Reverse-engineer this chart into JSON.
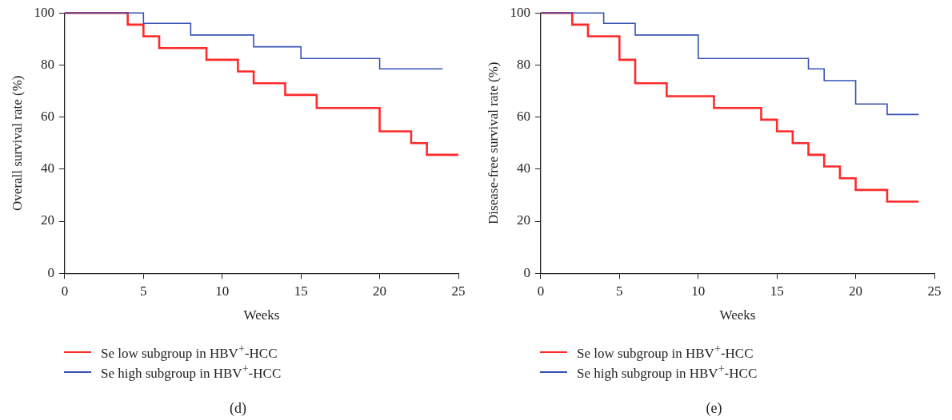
{
  "chart_data": [
    {
      "type": "step",
      "xlabel": "Weeks",
      "ylabel": "Overall survival rate (%)",
      "xlim": [
        0,
        25
      ],
      "xticks": [
        0,
        5,
        10,
        15,
        20,
        25
      ],
      "ylim": [
        0,
        100
      ],
      "yticks": [
        0,
        20,
        40,
        60,
        80,
        100
      ],
      "grid": false,
      "legend": "bottom",
      "annotations": [
        "(d)"
      ],
      "series": [
        {
          "name": "Se low subgroup in HBV$^{+}$-HCC",
          "color": "#ff2a2a",
          "x": [
            0,
            4,
            5,
            6,
            9,
            11,
            12,
            14,
            16,
            20,
            22,
            23,
            25
          ],
          "values": [
            100,
            95.5,
            91,
            86.5,
            82,
            77.5,
            73,
            68.5,
            63.5,
            54.5,
            50,
            45.5,
            45.5
          ]
        },
        {
          "name": "Se high subgroup in HBV$^{+}$-HCC",
          "color": "#3551b3",
          "x": [
            0,
            5,
            8,
            12,
            15,
            20,
            24
          ],
          "values": [
            100,
            96,
            91.5,
            87,
            82.5,
            78.5,
            78.5
          ]
        }
      ]
    },
    {
      "type": "step",
      "xlabel": "Weeks",
      "ylabel": "Disease-free survival rate (%)",
      "xlim": [
        0,
        25
      ],
      "xticks": [
        0,
        5,
        10,
        15,
        20,
        25
      ],
      "ylim": [
        0,
        100
      ],
      "yticks": [
        0,
        20,
        40,
        60,
        80,
        100
      ],
      "grid": false,
      "legend": "bottom",
      "annotations": [
        "(e)"
      ],
      "series": [
        {
          "name": "Se low subgroup in HBV$^{+}$-HCC",
          "color": "#ff2a2a",
          "x": [
            0,
            2,
            3,
            5,
            6,
            8,
            11,
            14,
            15,
            16,
            17,
            18,
            19,
            20,
            22,
            24
          ],
          "values": [
            100,
            95.5,
            91,
            82,
            73,
            68,
            63.5,
            59,
            54.5,
            50,
            45.5,
            41,
            36.5,
            32,
            27.5,
            27.5
          ]
        },
        {
          "name": "Se high subgroup in HBV$^{+}$-HCC",
          "color": "#3551b3",
          "x": [
            0,
            4,
            6,
            10,
            17,
            18,
            20,
            22,
            24
          ],
          "values": [
            100,
            96,
            91.5,
            82.5,
            78.5,
            74,
            65,
            61,
            61
          ]
        }
      ]
    }
  ]
}
